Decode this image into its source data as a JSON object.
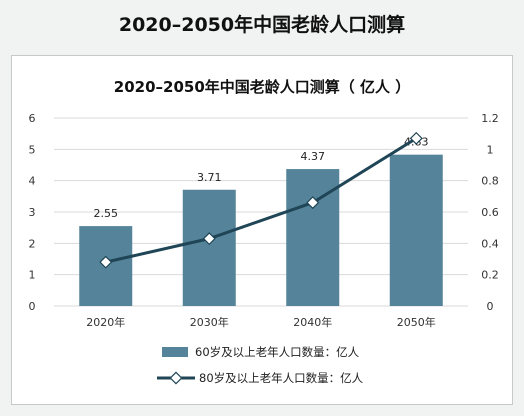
{
  "page": {
    "title": "2020–2050年中国老龄人口测算"
  },
  "chart_data": {
    "type": "bar",
    "title": "2020–2050年中国老龄人口测算（ 亿人 ）",
    "categories": [
      "2020年",
      "2030年",
      "2040年",
      "2050年"
    ],
    "series": [
      {
        "name": "60岁及以上老年人口数量：亿人",
        "type": "bar",
        "axis": "left",
        "values": [
          2.55,
          3.71,
          4.37,
          4.83
        ],
        "value_labels": [
          "2.55",
          "3.71",
          "4.37",
          "4.83"
        ],
        "color": "#55849a"
      },
      {
        "name": "80岁及以上老年人口数量：亿人",
        "type": "line",
        "axis": "right",
        "values": [
          0.28,
          0.43,
          0.66,
          1.07
        ],
        "color": "#1f4556"
      }
    ],
    "y_left": {
      "min": 0,
      "max": 6,
      "ticks": [
        "0",
        "1",
        "2",
        "3",
        "4",
        "5",
        "6"
      ]
    },
    "y_right": {
      "min": 0,
      "max": 1.2,
      "ticks": [
        "0",
        "0.2",
        "0.4",
        "0.6",
        "0.8",
        "1",
        "1.2"
      ]
    },
    "grid": true,
    "legend_position": "bottom"
  }
}
